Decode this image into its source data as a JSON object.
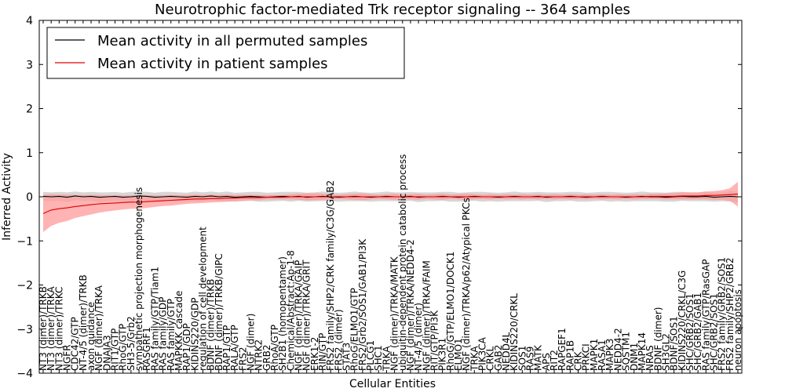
{
  "chart_data": {
    "type": "line",
    "title": "Neurotrophic factor-mediated Trk receptor signaling -- 364 samples",
    "xlabel": "Cellular Entities",
    "ylabel": "Inferred Activity",
    "ylim": [
      -4,
      4
    ],
    "yticks": [
      "4",
      "3",
      "2",
      "1",
      "0",
      "−1",
      "−2",
      "−3",
      "−4"
    ],
    "legend": {
      "position": "top-left",
      "entries": [
        {
          "label": "Mean activity in all permuted samples",
          "color": "#000000"
        },
        {
          "label": "Mean activity in patient samples",
          "color": "#dd0000"
        }
      ]
    },
    "colors": {
      "permuted_line": "#000000",
      "permuted_band": "#bbbbbb",
      "patient_line": "#dd0000",
      "patient_band": "#ff9999"
    },
    "categories": [
      "NT3 (dimer)/TRKB",
      "NT3 (dimer)/TRKA",
      "NT3 (dimer)/TRKC",
      "NGFR",
      "CDC42/GTP",
      "NT-4/5 (dimer)/TRKB",
      "axon guidance",
      "NGF (dimer)/TRKA",
      "DNAJA3",
      "RIT1/GTP",
      "RhoG/GTP",
      "SH3-5/Grb2",
      "sympathetic projection morphogenesis",
      "RASGRF1",
      "RAS family/GTP/Tiam1",
      "RAS family/GDP",
      "RAS family/GTP",
      "MAPKKK cascade",
      "RAP1/GDP",
      "KIDINS220/GDP",
      "regulation of cell development",
      "BDNF (dimer)/TRKB",
      "BDNF (dimer)/TRKB/GIPC",
      "RAP1/GTP",
      "RALA/GTP",
      "FRS2",
      "NGF (dimer)",
      "NTRK2",
      "GRB2",
      "RhoA/GTP",
      "SH2B1 (homopentamer)",
      "Chemical/Abstract:Ap-1-8",
      "NGF (dimer)/TRKA/GAIP",
      "NGF (dimer)/TRKA/GRIT",
      "ERK1-2",
      "RIN/GTP",
      "FRS2 family/SHP2/CRK family/C3G/GAB2",
      "FRS2 (dimer)",
      "STAT3",
      "RhoG/ELMO1/GTP",
      "FRS2/Grb2/SOS1/GAB1/PI3K",
      "PLCG1",
      "SHC1",
      "TRKA",
      "NGF (dimer)/TRKA/MATK",
      "ubiquitin-dependent protein catabolic process",
      "NGF (dimer)/TRKA/NEDD4-2",
      "NT-4/5 (dimer)",
      "NGF (dimer)/TRKA/FAIM",
      "RIT/GTP/PI3K",
      "PIK3R1",
      "RhoG/GTP/ELMO1/DOCK1",
      "ELMO1",
      "NGF (dimer)/TRKA/p62/Atypical PKCs",
      "TRKA",
      "PIK3CA",
      "CRKL",
      "GAB2",
      "NEDD4L",
      "KIDINS220/CRKL",
      "SOS1",
      "RAS9",
      "MATK",
      "APS",
      "RIT2",
      "RAPGEF1",
      "RAP1B",
      "CRK",
      "PRKCI",
      "MAPK1",
      "RASA1",
      "MAPK3",
      "NEDD4-2",
      "SQSTM1",
      "DNM1",
      "MAPK14",
      "NRAS",
      "BDNF (dimer)",
      "SH3GL2",
      "BDNF/SOS1",
      "KIDINS220/CRKL/C3G",
      "SHC/GRB2/SOS1",
      "SHC/GRB2/GAB1",
      "RAS family/GTP/RasGAP",
      "SHC/GRB2/SOS1",
      "FRS2 family/GRB2/SOS1",
      "FRS2 family/SHP2/GRB2",
      "neuron apoptosis"
    ],
    "permuted_mean": [
      0.01,
      0,
      0.01,
      -0.01,
      0.02,
      0,
      0.01,
      -0.01,
      0,
      0.01,
      -0.01,
      0,
      0.02,
      0.01,
      -0.01,
      0,
      0.01,
      0,
      -0.01,
      0.01,
      0,
      0.02,
      0,
      0.01,
      -0.01,
      0,
      0.01,
      0,
      -0.01,
      0,
      0.01,
      0,
      0.01,
      -0.01,
      0,
      0.01,
      0,
      -0.01,
      0,
      0.01,
      0,
      -0.01,
      0,
      0.01,
      0,
      0,
      0.01,
      -0.01,
      0,
      0,
      0.01,
      0,
      -0.01,
      0,
      0.01,
      0,
      0,
      -0.01,
      0,
      0.01,
      0,
      0,
      0.01,
      -0.01,
      0,
      0,
      0.01,
      0,
      -0.01,
      0,
      0.01,
      0,
      0,
      -0.01,
      0,
      0.01,
      0,
      0,
      -0.01,
      0,
      0.01,
      0,
      0,
      0.01,
      -0.01,
      0,
      0.01,
      0
    ],
    "permuted_std": [
      0.1,
      0.1,
      0.1,
      0.11,
      0.1,
      0.1,
      0.1,
      0.11,
      0.1,
      0.1,
      0.1,
      0.11,
      0.1,
      0.1,
      0.1,
      0.11,
      0.1,
      0.1,
      0.1,
      0.11,
      0.1,
      0.1,
      0.1,
      0.11,
      0.1,
      0.1,
      0.1,
      0.11,
      0.1,
      0.1,
      0.1,
      0.11,
      0.1,
      0.1,
      0.1,
      0.11,
      0.1,
      0.1,
      0.1,
      0.11,
      0.1,
      0.1,
      0.1,
      0.11,
      0.1,
      0.1,
      0.1,
      0.11,
      0.1,
      0.1,
      0.1,
      0.11,
      0.1,
      0.1,
      0.1,
      0.11,
      0.1,
      0.1,
      0.1,
      0.11,
      0.1,
      0.1,
      0.1,
      0.11,
      0.1,
      0.1,
      0.1,
      0.11,
      0.1,
      0.1,
      0.1,
      0.11,
      0.1,
      0.1,
      0.1,
      0.11,
      0.1,
      0.1,
      0.1,
      0.11,
      0.1,
      0.1,
      0.1,
      0.11,
      0.1,
      0.1,
      0.12,
      0.12
    ],
    "patient_mean": [
      -0.38,
      -0.3,
      -0.27,
      -0.25,
      -0.22,
      -0.2,
      -0.18,
      -0.16,
      -0.15,
      -0.14,
      -0.13,
      -0.12,
      -0.12,
      -0.11,
      -0.1,
      -0.09,
      -0.08,
      -0.07,
      -0.06,
      -0.05,
      -0.05,
      -0.04,
      -0.04,
      -0.03,
      -0.03,
      -0.02,
      -0.02,
      -0.02,
      -0.01,
      -0.01,
      -0.01,
      0,
      0,
      0,
      0,
      0,
      0,
      0,
      0,
      0,
      0,
      0,
      0,
      0,
      0,
      0,
      0,
      0,
      0,
      0,
      0,
      0,
      0,
      0,
      0,
      0,
      0,
      0,
      0,
      0,
      0,
      0,
      0,
      0,
      0,
      0,
      0,
      0,
      0,
      0,
      0,
      0,
      0,
      0,
      0,
      0,
      0.01,
      0.01,
      0.01,
      0.01,
      0.02,
      0.02,
      0.02,
      0.03,
      0.03,
      0.04,
      0.05,
      0.06
    ],
    "patient_std": [
      0.42,
      0.36,
      0.32,
      0.3,
      0.26,
      0.24,
      0.22,
      0.2,
      0.18,
      0.17,
      0.16,
      0.15,
      0.15,
      0.14,
      0.13,
      0.12,
      0.12,
      0.11,
      0.1,
      0.1,
      0.09,
      0.09,
      0.08,
      0.08,
      0.07,
      0.07,
      0.06,
      0.06,
      0.05,
      0.05,
      0.05,
      0.06,
      0.07,
      0.08,
      0.08,
      0.07,
      0.06,
      0.05,
      0.06,
      0.07,
      0.08,
      0.06,
      0.05,
      0.06,
      0.07,
      0.05,
      0.06,
      0.07,
      0.05,
      0.06,
      0.07,
      0.05,
      0.06,
      0.07,
      0.06,
      0.05,
      0.06,
      0.05,
      0.06,
      0.05,
      0.06,
      0.05,
      0.06,
      0.05,
      0.06,
      0.05,
      0.06,
      0.05,
      0.06,
      0.05,
      0.06,
      0.05,
      0.06,
      0.05,
      0.06,
      0.05,
      0.06,
      0.06,
      0.07,
      0.07,
      0.08,
      0.08,
      0.08,
      0.09,
      0.1,
      0.11,
      0.14,
      0.28
    ]
  }
}
